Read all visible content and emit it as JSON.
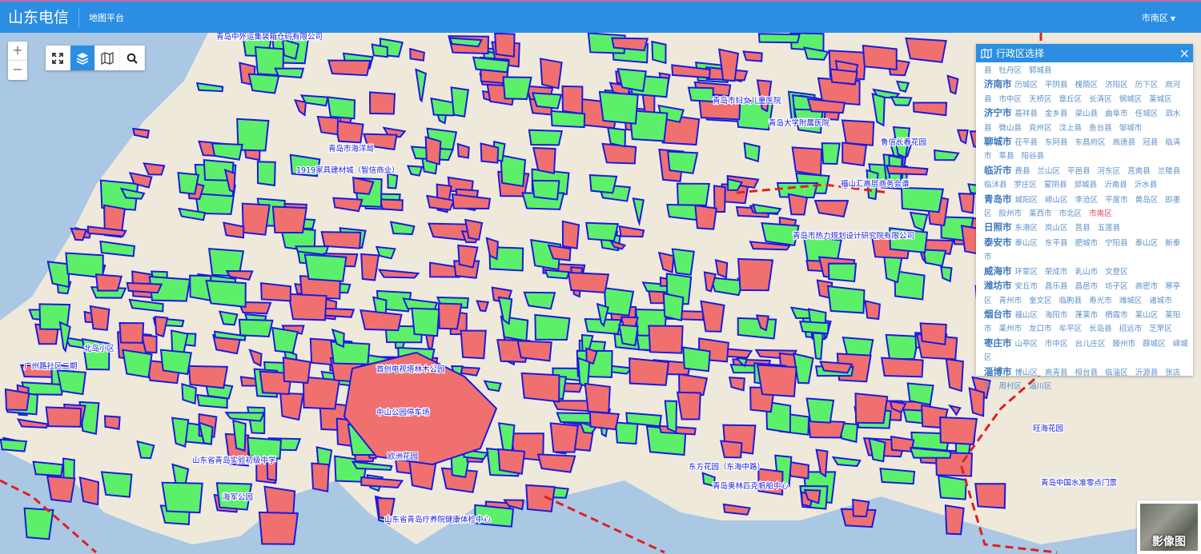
{
  "header": {
    "brand": "山东电信",
    "subtitle": "地图平台",
    "region": "市南区"
  },
  "colors": {
    "header": "#2b8ee3",
    "red_zone": "#f07070",
    "green_zone": "#5cf06a",
    "outline": "#1a1ae0",
    "boundary": "#e02020",
    "sea": "#aac8e4"
  },
  "toolbar": {
    "zoom_in": "+",
    "zoom_out": "−",
    "icons": [
      "fullscreen-icon",
      "layers-icon",
      "map-icon",
      "search-icon"
    ],
    "active": "layers-icon"
  },
  "panel": {
    "title": "行政区选择",
    "close": "×",
    "rows": [
      {
        "city": "",
        "districts": [
          "县",
          "牡丹区",
          "郓城县"
        ]
      },
      {
        "city": "济南市",
        "districts": [
          "历城区",
          "平阴县",
          "槐荫区",
          "济阳区",
          "历下区",
          "商河县",
          "市中区",
          "天桥区",
          "章丘区",
          "长清区",
          "钢城区",
          "莱城区"
        ]
      },
      {
        "city": "济宁市",
        "districts": [
          "嘉祥县",
          "金乡县",
          "梁山县",
          "曲阜市",
          "任城区",
          "泗水县",
          "微山县",
          "兖州区",
          "汶上县",
          "鱼台县",
          "邹城市"
        ]
      },
      {
        "city": "聊城市",
        "districts": [
          "茌平县",
          "东阿县",
          "东昌府区",
          "高唐县",
          "冠县",
          "临清市",
          "莘县",
          "阳谷县"
        ]
      },
      {
        "city": "临沂市",
        "districts": [
          "费县",
          "兰山区",
          "平邑县",
          "河东区",
          "莒南县",
          "兰陵县",
          "临沭县",
          "罗庄区",
          "蒙阴县",
          "郯城县",
          "沂南县",
          "沂水县"
        ]
      },
      {
        "city": "青岛市",
        "districts": [
          "城阳区",
          "崂山区",
          "李沧区",
          "平度市",
          "黄岛区",
          "即墨区",
          "胶州市",
          "莱西市",
          "市北区",
          "市南区"
        ]
      },
      {
        "city": "日照市",
        "districts": [
          "东港区",
          "岚山区",
          "莒县",
          "五莲县"
        ]
      },
      {
        "city": "泰安市",
        "districts": [
          "泰山区",
          "东平县",
          "肥城市",
          "宁阳县",
          "泰山区",
          "新泰市"
        ]
      },
      {
        "city": "威海市",
        "districts": [
          "环翠区",
          "荣成市",
          "乳山市",
          "文登区"
        ]
      },
      {
        "city": "潍坊市",
        "districts": [
          "安丘市",
          "昌乐县",
          "昌邑市",
          "坊子区",
          "高密市",
          "寒亭区",
          "青州市",
          "奎文区",
          "临朐县",
          "寿光市",
          "潍城区",
          "诸城市"
        ]
      },
      {
        "city": "烟台市",
        "districts": [
          "福山区",
          "海阳市",
          "蓬莱市",
          "栖霞市",
          "莱山区",
          "莱阳市",
          "莱州市",
          "龙口市",
          "牟平区",
          "长岛县",
          "招远市",
          "芝罘区"
        ]
      },
      {
        "city": "枣庄市",
        "districts": [
          "山亭区",
          "市中区",
          "台儿庄区",
          "滕州市",
          "薛城区",
          "峄城区"
        ]
      },
      {
        "city": "淄博市",
        "districts": [
          "博山区",
          "高青县",
          "桓台县",
          "临淄区",
          "沂源县",
          "张店区",
          "周村区",
          "淄川区"
        ]
      }
    ],
    "selected": "市南区"
  },
  "map": {
    "labels": [
      "青岛中外运集装箱仓码有限公司",
      "中山公园停车场",
      "首创电视塔林木公园",
      "欧洲花园",
      "青岛市海洋局",
      "福山汇高层商务会谱",
      "青岛市热力规划设计研究院有限公司",
      "山东省青岛疗养院健康体检中心",
      "青岛中国水准零点门票",
      "青岛奥林匹克帆船中心",
      "东方花园（东海中路）",
      "广州路社区二期",
      "北岛小区",
      "山东省青岛实验初级中学",
      "海军公园",
      "1919家具建材城（智信商业）",
      "旺海花园",
      "青岛市妇女儿童医院",
      "青岛大学附属医院",
      "鲁信长春花园"
    ],
    "basemap_thumb": "影像图"
  }
}
